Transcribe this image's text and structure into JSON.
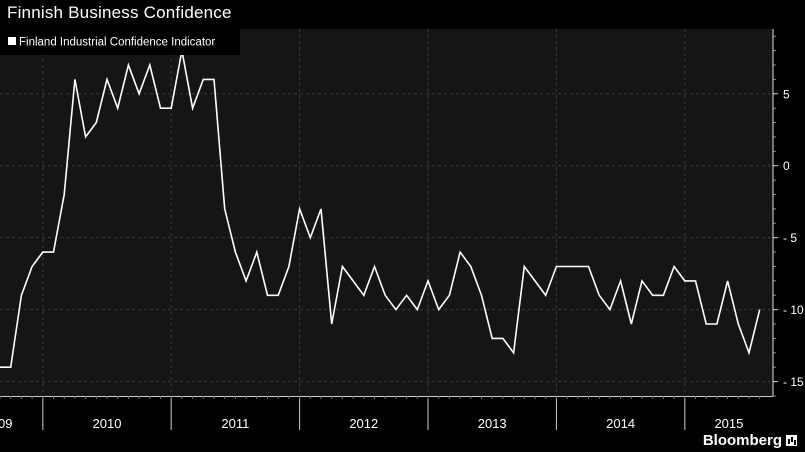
{
  "title": "Finnish Business Confidence",
  "brand": "Bloomberg",
  "colors": {
    "background": "#000000",
    "plot_background": "#151515",
    "line": "#ffffff",
    "grid": "#3a3a3a"
  },
  "chart_data": {
    "type": "line",
    "title": "Finnish Business Confidence",
    "xlabel": "",
    "ylabel": "",
    "ylim": [
      -16,
      9.5
    ],
    "yticks": [
      5,
      0,
      -5,
      -10,
      -15
    ],
    "x_tick_labels": [
      "09",
      "2010",
      "2011",
      "2012",
      "2013",
      "2014",
      "2015"
    ],
    "x_start": "2009-09",
    "x_end": "2015-08",
    "grid": true,
    "legend_position": "top-left",
    "series": [
      {
        "name": "Finland Industrial Confidence Indicator",
        "x": [
          "2009-09",
          "2009-10",
          "2009-11",
          "2009-12",
          "2010-01",
          "2010-02",
          "2010-03",
          "2010-04",
          "2010-05",
          "2010-06",
          "2010-07",
          "2010-08",
          "2010-09",
          "2010-10",
          "2010-11",
          "2010-12",
          "2011-01",
          "2011-02",
          "2011-03",
          "2011-04",
          "2011-05",
          "2011-06",
          "2011-07",
          "2011-08",
          "2011-09",
          "2011-10",
          "2011-11",
          "2011-12",
          "2012-01",
          "2012-02",
          "2012-03",
          "2012-04",
          "2012-05",
          "2012-06",
          "2012-07",
          "2012-08",
          "2012-09",
          "2012-10",
          "2012-11",
          "2012-12",
          "2013-01",
          "2013-02",
          "2013-03",
          "2013-04",
          "2013-05",
          "2013-06",
          "2013-07",
          "2013-08",
          "2013-09",
          "2013-10",
          "2013-11",
          "2013-12",
          "2014-01",
          "2014-02",
          "2014-03",
          "2014-04",
          "2014-05",
          "2014-06",
          "2014-07",
          "2014-08",
          "2014-09",
          "2014-10",
          "2014-11",
          "2014-12",
          "2015-01",
          "2015-02",
          "2015-03",
          "2015-04",
          "2015-05",
          "2015-06",
          "2015-07",
          "2015-08"
        ],
        "values": [
          -14,
          -14,
          -9,
          -7,
          -6,
          -6,
          -2,
          6,
          2,
          3,
          6,
          4,
          7,
          5,
          7,
          4,
          4,
          8,
          4,
          6,
          6,
          -3,
          -6,
          -8,
          -6,
          -9,
          -9,
          -7,
          -3,
          -5,
          -3,
          -11,
          -7,
          -8,
          -9,
          -7,
          -9,
          -10,
          -9,
          -10,
          -8,
          -10,
          -9,
          -6,
          -7,
          -9,
          -12,
          -12,
          -13,
          -7,
          -8,
          -9,
          -7,
          -7,
          -7,
          -7,
          -9,
          -10,
          -8,
          -11,
          -8,
          -9,
          -9,
          -7,
          -8,
          -8,
          -11,
          -11,
          -8,
          -11,
          -13,
          -10
        ]
      }
    ]
  }
}
